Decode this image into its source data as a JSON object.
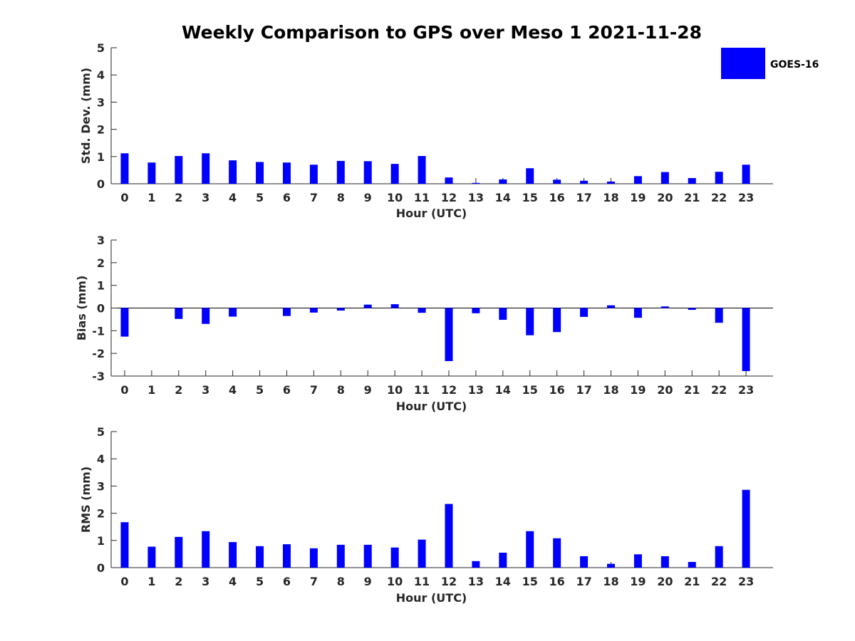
{
  "title": "Weekly Comparison to GPS over Meso 1 2021-11-28",
  "legend": {
    "label": "GOES-16",
    "color": "#0000ff"
  },
  "chart_data": [
    {
      "type": "bar",
      "id": "stddev",
      "ylabel": "Std. Dev. (mm)",
      "xlabel": "Hour (UTC)",
      "ylim": [
        0,
        5
      ],
      "yticks": [
        0,
        1,
        2,
        3,
        4,
        5
      ],
      "categories": [
        "0",
        "1",
        "2",
        "3",
        "4",
        "5",
        "6",
        "7",
        "8",
        "9",
        "10",
        "11",
        "12",
        "13",
        "14",
        "15",
        "16",
        "17",
        "18",
        "19",
        "20",
        "21",
        "22",
        "23"
      ],
      "series": [
        {
          "name": "GOES-16",
          "values": [
            1.12,
            0.78,
            1.02,
            1.12,
            0.86,
            0.8,
            0.78,
            0.7,
            0.84,
            0.83,
            0.73,
            1.02,
            0.23,
            0.03,
            0.16,
            0.57,
            0.15,
            0.11,
            0.08,
            0.28,
            0.43,
            0.21,
            0.44,
            0.7
          ]
        }
      ]
    },
    {
      "type": "bar",
      "id": "bias",
      "ylabel": "Bias (mm)",
      "xlabel": "Hour (UTC)",
      "ylim": [
        -3,
        3
      ],
      "yticks": [
        -3,
        -2,
        -1,
        0,
        1,
        2,
        3
      ],
      "categories": [
        "0",
        "1",
        "2",
        "3",
        "4",
        "5",
        "6",
        "7",
        "8",
        "9",
        "10",
        "11",
        "12",
        "13",
        "14",
        "15",
        "16",
        "17",
        "18",
        "19",
        "20",
        "21",
        "22",
        "23"
      ],
      "series": [
        {
          "name": "GOES-16",
          "values": [
            -1.26,
            0.0,
            -0.48,
            -0.7,
            -0.38,
            0.0,
            -0.35,
            -0.2,
            -0.11,
            0.15,
            0.17,
            -0.21,
            -2.34,
            -0.23,
            -0.52,
            -1.2,
            -1.06,
            -0.39,
            0.12,
            -0.43,
            0.07,
            -0.08,
            -0.65,
            -2.78
          ]
        }
      ]
    },
    {
      "type": "bar",
      "id": "rms",
      "ylabel": "RMS (mm)",
      "xlabel": "Hour (UTC)",
      "ylim": [
        0,
        5
      ],
      "yticks": [
        0,
        1,
        2,
        3,
        4,
        5
      ],
      "categories": [
        "0",
        "1",
        "2",
        "3",
        "4",
        "5",
        "6",
        "7",
        "8",
        "9",
        "10",
        "11",
        "12",
        "13",
        "14",
        "15",
        "16",
        "17",
        "18",
        "19",
        "20",
        "21",
        "22",
        "23"
      ],
      "series": [
        {
          "name": "GOES-16",
          "values": [
            1.67,
            0.77,
            1.13,
            1.34,
            0.94,
            0.79,
            0.86,
            0.71,
            0.84,
            0.84,
            0.74,
            1.03,
            2.34,
            0.24,
            0.55,
            1.34,
            1.08,
            0.42,
            0.14,
            0.49,
            0.42,
            0.21,
            0.79,
            2.86
          ]
        }
      ]
    }
  ]
}
